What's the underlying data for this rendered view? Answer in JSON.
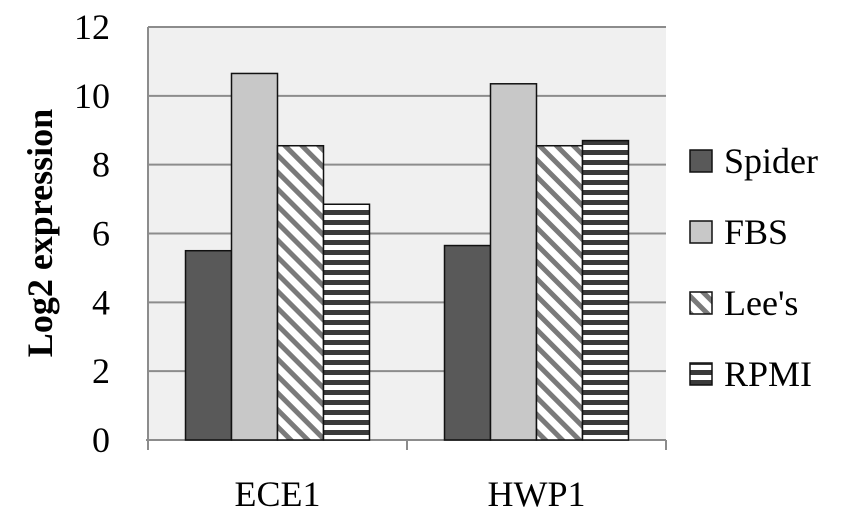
{
  "chart_data": {
    "type": "bar",
    "categories": [
      "ECE1",
      "HWP1"
    ],
    "series": [
      {
        "name": "Spider",
        "values": [
          5.5,
          5.65
        ],
        "color": "#595959",
        "pattern": "solid"
      },
      {
        "name": "FBS",
        "values": [
          10.65,
          10.35
        ],
        "color": "#c8c8c8",
        "pattern": "solid"
      },
      {
        "name": "Lee's",
        "values": [
          8.55,
          8.55
        ],
        "color": "#ffffff",
        "pattern": "diagonal-stripes"
      },
      {
        "name": "RPMI",
        "values": [
          6.85,
          8.7
        ],
        "color": "#ffffff",
        "pattern": "horizontal-stripes"
      }
    ],
    "title": "",
    "xlabel": "",
    "ylabel": "Log2 expression",
    "ylim": [
      0,
      12
    ],
    "yticks": [
      0,
      2,
      4,
      6,
      8,
      10,
      12
    ],
    "grid": true,
    "plot_background": "#f0f0f0",
    "legend_position": "right"
  }
}
